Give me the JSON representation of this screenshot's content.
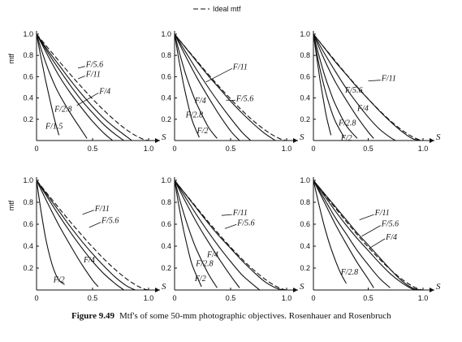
{
  "legend": {
    "label": "Ideal mtf"
  },
  "caption": {
    "figure_number": "Figure 9.49",
    "text": "Mtf's of some 50-mm photographic objectives. Rosenhauer and Rosenbruch"
  },
  "chart_data": [
    {
      "type": "line",
      "panel": "top-left",
      "ylabel": "mtf",
      "xlabel": "S",
      "xlim": [
        0,
        1.0
      ],
      "ylim": [
        0,
        1.0
      ],
      "xticks": [
        "0",
        "0.5",
        "1.0"
      ],
      "yticks": [
        "0.2",
        "0.4",
        "0.6",
        "0.8",
        "1.0"
      ],
      "ideal": true,
      "series": [
        {
          "name": "F/5.6",
          "x": [
            0,
            0.1,
            0.2,
            0.3,
            0.4,
            0.5,
            0.6,
            0.7,
            0.8,
            0.85
          ],
          "y": [
            1,
            0.85,
            0.71,
            0.57,
            0.44,
            0.32,
            0.21,
            0.12,
            0.04,
            0
          ]
        },
        {
          "name": "F/11",
          "x": [
            0,
            0.1,
            0.2,
            0.3,
            0.4,
            0.5,
            0.6,
            0.7,
            0.78
          ],
          "y": [
            1,
            0.83,
            0.67,
            0.52,
            0.38,
            0.26,
            0.15,
            0.06,
            0
          ]
        },
        {
          "name": "F/4",
          "x": [
            0,
            0.1,
            0.2,
            0.3,
            0.4,
            0.5,
            0.6,
            0.68
          ],
          "y": [
            1,
            0.8,
            0.61,
            0.45,
            0.31,
            0.18,
            0.07,
            0
          ]
        },
        {
          "name": "F/2.8",
          "x": [
            0,
            0.05,
            0.1,
            0.15,
            0.2,
            0.3,
            0.4,
            0.45
          ],
          "y": [
            1,
            0.83,
            0.68,
            0.55,
            0.44,
            0.26,
            0.1,
            0.02
          ]
        },
        {
          "name": "F/1.5",
          "x": [
            0,
            0.04,
            0.08,
            0.12,
            0.16,
            0.2
          ],
          "y": [
            1,
            0.78,
            0.57,
            0.38,
            0.2,
            0.05
          ]
        }
      ],
      "labels": [
        {
          "text": "F/5.6",
          "x": 0.44,
          "y": 0.72,
          "tx": 0.37,
          "ty": 0.68
        },
        {
          "text": "F/11",
          "x": 0.44,
          "y": 0.63,
          "tx": 0.37,
          "ty": 0.58
        },
        {
          "text": "F/4",
          "x": 0.56,
          "y": 0.47,
          "tx": 0.36,
          "ty": 0.33
        },
        {
          "text": "F/2.8",
          "x": 0.16,
          "y": 0.3
        },
        {
          "text": "F/1.5",
          "x": 0.08,
          "y": 0.14
        }
      ]
    },
    {
      "type": "line",
      "panel": "top-middle",
      "ylabel": "",
      "xlabel": "S",
      "xlim": [
        0,
        1.0
      ],
      "ylim": [
        0,
        1.0
      ],
      "xticks": [
        "0",
        "0.5",
        "1.0"
      ],
      "yticks": [
        "0.2",
        "0.4",
        "0.6",
        "0.8",
        "1.0"
      ],
      "ideal": true,
      "series": [
        {
          "name": "F/11",
          "x": [
            0,
            0.1,
            0.2,
            0.3,
            0.4,
            0.5,
            0.6,
            0.7,
            0.8,
            0.9
          ],
          "y": [
            1,
            0.87,
            0.74,
            0.61,
            0.49,
            0.37,
            0.26,
            0.16,
            0.07,
            0
          ]
        },
        {
          "name": "F/5.6",
          "x": [
            0,
            0.1,
            0.2,
            0.3,
            0.4,
            0.5,
            0.6,
            0.68
          ],
          "y": [
            1,
            0.83,
            0.66,
            0.5,
            0.35,
            0.21,
            0.08,
            0
          ]
        },
        {
          "name": "F/4",
          "x": [
            0,
            0.1,
            0.2,
            0.3,
            0.4,
            0.5,
            0.58
          ],
          "y": [
            1,
            0.79,
            0.59,
            0.41,
            0.24,
            0.09,
            0
          ]
        },
        {
          "name": "F/2.8",
          "x": [
            0,
            0.05,
            0.1,
            0.15,
            0.2,
            0.3,
            0.38
          ],
          "y": [
            1,
            0.8,
            0.62,
            0.47,
            0.34,
            0.13,
            0.02
          ]
        },
        {
          "name": "F/2",
          "x": [
            0,
            0.04,
            0.08,
            0.12,
            0.16,
            0.22
          ],
          "y": [
            1,
            0.75,
            0.53,
            0.34,
            0.18,
            0.03
          ]
        }
      ],
      "labels": [
        {
          "text": "F/11",
          "x": 0.52,
          "y": 0.7,
          "tx": 0.28,
          "ty": 0.55
        },
        {
          "text": "F/4",
          "x": 0.18,
          "y": 0.38
        },
        {
          "text": "F/5.6",
          "x": 0.55,
          "y": 0.4,
          "tx": 0.46,
          "ty": 0.38
        },
        {
          "text": "F/2.8",
          "x": 0.1,
          "y": 0.25
        },
        {
          "text": "F/2",
          "x": 0.2,
          "y": 0.1
        }
      ]
    },
    {
      "type": "line",
      "panel": "top-right",
      "ylabel": "",
      "xlabel": "S",
      "xlim": [
        0,
        1.0
      ],
      "ylim": [
        0,
        1.0
      ],
      "xticks": [
        "0",
        "0.5",
        "1.0"
      ],
      "yticks": [
        "0.2",
        "0.4",
        "0.6",
        "0.8",
        "1.0"
      ],
      "ideal": true,
      "series": [
        {
          "name": "F/11",
          "x": [
            0,
            0.1,
            0.2,
            0.3,
            0.4,
            0.5,
            0.6,
            0.7,
            0.8,
            0.9,
            0.98
          ],
          "y": [
            1,
            0.87,
            0.74,
            0.62,
            0.5,
            0.39,
            0.28,
            0.18,
            0.09,
            0.02,
            0
          ]
        },
        {
          "name": "F/5.6",
          "x": [
            0,
            0.1,
            0.2,
            0.3,
            0.4,
            0.5,
            0.6,
            0.7,
            0.75
          ],
          "y": [
            1,
            0.82,
            0.65,
            0.49,
            0.35,
            0.22,
            0.11,
            0.03,
            0
          ]
        },
        {
          "name": "F/4",
          "x": [
            0,
            0.1,
            0.2,
            0.3,
            0.4,
            0.5,
            0.55
          ],
          "y": [
            1,
            0.76,
            0.55,
            0.38,
            0.22,
            0.08,
            0.02
          ]
        },
        {
          "name": "F/2.8",
          "x": [
            0,
            0.05,
            0.1,
            0.15,
            0.2,
            0.3,
            0.4
          ],
          "y": [
            1,
            0.8,
            0.62,
            0.47,
            0.34,
            0.14,
            0.02
          ]
        },
        {
          "name": "F/2",
          "x": [
            0,
            0.05,
            0.1,
            0.15,
            0.2,
            0.28
          ],
          "y": [
            1,
            0.72,
            0.5,
            0.32,
            0.18,
            0.03
          ]
        },
        {
          "name": "",
          "x": [
            0,
            0.03,
            0.06,
            0.09,
            0.12,
            0.16
          ],
          "y": [
            1,
            0.78,
            0.57,
            0.39,
            0.22,
            0.05
          ]
        }
      ],
      "labels": [
        {
          "text": "F/11",
          "x": 0.62,
          "y": 0.59,
          "tx": 0.5,
          "ty": 0.56
        },
        {
          "text": "F/5.6",
          "x": 0.29,
          "y": 0.48
        },
        {
          "text": "F/4",
          "x": 0.4,
          "y": 0.31
        },
        {
          "text": "F/2.8",
          "x": 0.23,
          "y": 0.17
        },
        {
          "text": "F/2",
          "x": 0.25,
          "y": 0.03
        }
      ]
    },
    {
      "type": "line",
      "panel": "bottom-left",
      "ylabel": "mtf",
      "xlabel": "S",
      "xlim": [
        0,
        1.0
      ],
      "ylim": [
        0,
        1.0
      ],
      "xticks": [
        "0",
        "0.5",
        "1.0"
      ],
      "yticks": [
        "0.2",
        "0.4",
        "0.6",
        "0.8",
        "1.0"
      ],
      "ideal": true,
      "series": [
        {
          "name": "F/11",
          "x": [
            0,
            0.1,
            0.2,
            0.3,
            0.4,
            0.5,
            0.6,
            0.7,
            0.8,
            0.88
          ],
          "y": [
            1,
            0.86,
            0.72,
            0.58,
            0.45,
            0.33,
            0.22,
            0.12,
            0.04,
            0
          ]
        },
        {
          "name": "F/5.6",
          "x": [
            0,
            0.1,
            0.2,
            0.3,
            0.4,
            0.5,
            0.6,
            0.7,
            0.78
          ],
          "y": [
            1,
            0.84,
            0.68,
            0.53,
            0.39,
            0.26,
            0.15,
            0.06,
            0
          ]
        },
        {
          "name": "F/4",
          "x": [
            0,
            0.1,
            0.2,
            0.3,
            0.4,
            0.5,
            0.55
          ],
          "y": [
            1,
            0.79,
            0.59,
            0.41,
            0.24,
            0.09,
            0.03
          ]
        },
        {
          "name": "F/2",
          "x": [
            0,
            0.04,
            0.08,
            0.12,
            0.16,
            0.2,
            0.25
          ],
          "y": [
            1,
            0.72,
            0.48,
            0.3,
            0.17,
            0.09,
            0.05
          ]
        }
      ],
      "labels": [
        {
          "text": "F/11",
          "x": 0.52,
          "y": 0.75,
          "tx": 0.41,
          "ty": 0.69
        },
        {
          "text": "F/5.6",
          "x": 0.58,
          "y": 0.64,
          "tx": 0.47,
          "ty": 0.57
        },
        {
          "text": "F/4",
          "x": 0.42,
          "y": 0.28
        },
        {
          "text": "F/2",
          "x": 0.15,
          "y": 0.1
        }
      ]
    },
    {
      "type": "line",
      "panel": "bottom-middle",
      "ylabel": "",
      "xlabel": "S",
      "xlim": [
        0,
        1.0
      ],
      "ylim": [
        0,
        1.0
      ],
      "xticks": [
        "0",
        "0.5",
        "1.0"
      ],
      "yticks": [
        "0.2",
        "0.4",
        "0.6",
        "0.8",
        "1.0"
      ],
      "ideal": true,
      "series": [
        {
          "name": "F/11",
          "x": [
            0,
            0.1,
            0.2,
            0.3,
            0.4,
            0.5,
            0.6,
            0.7,
            0.8,
            0.9,
            0.97
          ],
          "y": [
            1,
            0.87,
            0.74,
            0.61,
            0.49,
            0.38,
            0.27,
            0.17,
            0.08,
            0.02,
            0
          ]
        },
        {
          "name": "F/5.6",
          "x": [
            0,
            0.1,
            0.2,
            0.3,
            0.4,
            0.5,
            0.6,
            0.7,
            0.76
          ],
          "y": [
            1,
            0.84,
            0.68,
            0.53,
            0.39,
            0.26,
            0.14,
            0.05,
            0
          ]
        },
        {
          "name": "F/4",
          "x": [
            0,
            0.1,
            0.2,
            0.3,
            0.4,
            0.5,
            0.58
          ],
          "y": [
            1,
            0.8,
            0.61,
            0.44,
            0.28,
            0.13,
            0.02
          ]
        },
        {
          "name": "F/2.8",
          "x": [
            0,
            0.05,
            0.1,
            0.15,
            0.2,
            0.3,
            0.38
          ],
          "y": [
            1,
            0.81,
            0.64,
            0.49,
            0.36,
            0.15,
            0.02
          ]
        },
        {
          "name": "F/2",
          "x": [
            0,
            0.04,
            0.08,
            0.12,
            0.16,
            0.24
          ],
          "y": [
            1,
            0.76,
            0.55,
            0.37,
            0.22,
            0.03
          ]
        }
      ],
      "labels": [
        {
          "text": "F/11",
          "x": 0.52,
          "y": 0.71,
          "tx": 0.42,
          "ty": 0.68
        },
        {
          "text": "F/5.6",
          "x": 0.56,
          "y": 0.62,
          "tx": 0.45,
          "ty": 0.56
        },
        {
          "text": "F/4",
          "x": 0.29,
          "y": 0.33
        },
        {
          "text": "F/2.8",
          "x": 0.19,
          "y": 0.25
        },
        {
          "text": "F/2",
          "x": 0.18,
          "y": 0.11
        }
      ]
    },
    {
      "type": "line",
      "panel": "bottom-right",
      "ylabel": "",
      "xlabel": "S",
      "xlim": [
        0,
        1.0
      ],
      "ylim": [
        0,
        1.0
      ],
      "xticks": [
        "0",
        "0.5",
        "1.0"
      ],
      "yticks": [
        "0.2",
        "0.4",
        "0.6",
        "0.8",
        "1.0"
      ],
      "ideal": true,
      "series": [
        {
          "name": "F/11",
          "x": [
            0,
            0.1,
            0.2,
            0.3,
            0.4,
            0.5,
            0.6,
            0.7,
            0.8,
            0.9,
            0.98
          ],
          "y": [
            1,
            0.88,
            0.76,
            0.64,
            0.52,
            0.41,
            0.3,
            0.19,
            0.09,
            0.02,
            0
          ]
        },
        {
          "name": "F/5.6",
          "x": [
            0,
            0.1,
            0.2,
            0.3,
            0.4,
            0.5,
            0.6,
            0.7,
            0.8,
            0.9,
            0.96
          ],
          "y": [
            1,
            0.86,
            0.72,
            0.59,
            0.47,
            0.36,
            0.25,
            0.15,
            0.07,
            0.01,
            0
          ]
        },
        {
          "name": "F/4",
          "x": [
            0,
            0.1,
            0.2,
            0.3,
            0.4,
            0.5,
            0.6,
            0.7
          ],
          "y": [
            1,
            0.83,
            0.66,
            0.51,
            0.36,
            0.23,
            0.11,
            0.02
          ]
        },
        {
          "name": "F/2.8",
          "x": [
            0,
            0.1,
            0.2,
            0.3,
            0.4,
            0.5,
            0.55
          ],
          "y": [
            1,
            0.8,
            0.6,
            0.42,
            0.25,
            0.1,
            0.02
          ]
        },
        {
          "name": "",
          "x": [
            0,
            0.05,
            0.1,
            0.15,
            0.2,
            0.25,
            0.3
          ],
          "y": [
            1,
            0.78,
            0.58,
            0.41,
            0.27,
            0.15,
            0.06
          ]
        }
      ],
      "labels": [
        {
          "text": "F/11",
          "x": 0.56,
          "y": 0.71,
          "tx": 0.42,
          "ty": 0.64
        },
        {
          "text": "F/5.6",
          "x": 0.62,
          "y": 0.61,
          "tx": 0.44,
          "ty": 0.49
        },
        {
          "text": "F/4",
          "x": 0.66,
          "y": 0.49,
          "tx": 0.51,
          "ty": 0.38
        },
        {
          "text": "F/2.8",
          "x": 0.25,
          "y": 0.17
        }
      ]
    }
  ]
}
